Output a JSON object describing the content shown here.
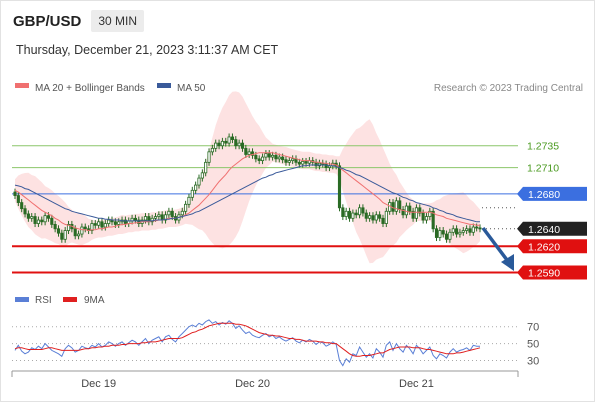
{
  "header": {
    "pair": "GBP/USD",
    "timeframe": "30 MIN"
  },
  "timestamp": "Thursday, December 21, 2023 3:11:37 AM CET",
  "legend": {
    "ma20_label": "MA 20 + Bollinger Bands",
    "ma50_label": "MA 50",
    "credit": "Research © 2023 Trading Central"
  },
  "rsi_legend": {
    "rsi_label": "RSI",
    "ma_label": "9MA"
  },
  "colors": {
    "candle": "#2a6b25",
    "ma20": "#f07070",
    "ma50": "#3a5a9a",
    "band_fill": "#fde2e2",
    "resistance": "#8cc66a",
    "pivot": "#3b6fe0",
    "support": "#e01010",
    "current": "#222222",
    "rsi": "#5a7fd6",
    "rsi_ma": "#e02020",
    "arrow": "#2a5a9a"
  },
  "chart_data": {
    "type": "candlestick",
    "x_ticks": [
      "Dec 19",
      "Dec 20",
      "Dec 21"
    ],
    "ylim": [
      1.257,
      1.2785
    ],
    "levels": [
      {
        "label": "1.2735",
        "value": 1.2735,
        "kind": "resistance"
      },
      {
        "label": "1.2710",
        "value": 1.271,
        "kind": "resistance"
      },
      {
        "label": "1.2680",
        "value": 1.268,
        "kind": "pivot"
      },
      {
        "label": "1.2640",
        "value": 1.264,
        "kind": "current"
      },
      {
        "label": "1.2620",
        "value": 1.262,
        "kind": "support"
      },
      {
        "label": "1.2590",
        "value": 1.259,
        "kind": "support"
      }
    ],
    "close": [
      1.2678,
      1.267,
      1.2663,
      1.2657,
      1.2652,
      1.2654,
      1.2646,
      1.265,
      1.2648,
      1.2655,
      1.2652,
      1.2645,
      1.264,
      1.2635,
      1.2628,
      1.2638,
      1.2645,
      1.264,
      1.2632,
      1.2634,
      1.2642,
      1.264,
      1.2638,
      1.2646,
      1.2644,
      1.2648,
      1.2642,
      1.2646,
      1.265,
      1.2648,
      1.2645,
      1.2648,
      1.265,
      1.2646,
      1.2649,
      1.2652,
      1.265,
      1.2646,
      1.265,
      1.2654,
      1.2648,
      1.2652,
      1.2654,
      1.2656,
      1.265,
      1.2656,
      1.266,
      1.2654,
      1.265,
      1.2656,
      1.266,
      1.2668,
      1.2676,
      1.2684,
      1.269,
      1.2698,
      1.2704,
      1.2716,
      1.2728,
      1.2732,
      1.2738,
      1.2735,
      1.274,
      1.2738,
      1.2745,
      1.2742,
      1.2735,
      1.2738,
      1.2732,
      1.2725,
      1.2728,
      1.2724,
      1.272,
      1.2718,
      1.2722,
      1.2726,
      1.2722,
      1.2724,
      1.272,
      1.2722,
      1.2719,
      1.2716,
      1.2718,
      1.272,
      1.2716,
      1.2714,
      1.2717,
      1.2715,
      1.2718,
      1.2716,
      1.2712,
      1.2715,
      1.2714,
      1.271,
      1.2712,
      1.2715,
      1.2712,
      1.2664,
      1.2654,
      1.266,
      1.2652,
      1.2658,
      1.2656,
      1.2664,
      1.2658,
      1.2652,
      1.2655,
      1.265,
      1.2656,
      1.2652,
      1.2646,
      1.266,
      1.267,
      1.266,
      1.2672,
      1.2662,
      1.2656,
      1.2666,
      1.266,
      1.2652,
      1.2664,
      1.2658,
      1.265,
      1.2654,
      1.266,
      1.264,
      1.263,
      1.2638,
      1.2634,
      1.2628,
      1.2636,
      1.264,
      1.2634,
      1.2636,
      1.2638,
      1.264,
      1.2636,
      1.2642,
      1.2641,
      1.264
    ],
    "ma20": [
      1.2684,
      1.2682,
      1.2679,
      1.2676,
      1.2673,
      1.267,
      1.2667,
      1.2664,
      1.2661,
      1.2659,
      1.2657,
      1.2655,
      1.2652,
      1.265,
      1.2647,
      1.2645,
      1.2644,
      1.2643,
      1.2641,
      1.264,
      1.2639,
      1.2639,
      1.2638,
      1.2639,
      1.2639,
      1.264,
      1.264,
      1.2641,
      1.2642,
      1.2642,
      1.2643,
      1.2644,
      1.2645,
      1.2645,
      1.2646,
      1.2646,
      1.2647,
      1.2647,
      1.2648,
      1.2648,
      1.2648,
      1.2649,
      1.2649,
      1.265,
      1.265,
      1.2651,
      1.2652,
      1.2652,
      1.2652,
      1.2653,
      1.2654,
      1.2656,
      1.2658,
      1.2661,
      1.2664,
      1.2667,
      1.2671,
      1.2675,
      1.2679,
      1.2684,
      1.2689,
      1.2694,
      1.2698,
      1.2702,
      1.2707,
      1.2711,
      1.2714,
      1.2717,
      1.272,
      1.2722,
      1.2724,
      1.2725,
      1.2726,
      1.2727,
      1.2727,
      1.2727,
      1.2727,
      1.2727,
      1.2726,
      1.2725,
      1.2724,
      1.2723,
      1.2722,
      1.2721,
      1.272,
      1.2719,
      1.2718,
      1.2718,
      1.2718,
      1.2717,
      1.2716,
      1.2716,
      1.2715,
      1.2715,
      1.2714,
      1.2714,
      1.2713,
      1.271,
      1.2707,
      1.2704,
      1.2701,
      1.2698,
      1.2695,
      1.2692,
      1.2689,
      1.2686,
      1.2683,
      1.268,
      1.2677,
      1.2674,
      1.267,
      1.2668,
      1.2666,
      1.2664,
      1.2663,
      1.2662,
      1.2661,
      1.266,
      1.2659,
      1.2659,
      1.2659,
      1.2659,
      1.2659,
      1.2659,
      1.2659,
      1.2658,
      1.2656,
      1.2655,
      1.2654,
      1.2652,
      1.2651,
      1.265,
      1.2649,
      1.2648,
      1.2647,
      1.2646,
      1.2645,
      1.2645,
      1.2644,
      1.2644
    ],
    "ma50": [
      1.269,
      1.2689,
      1.2688,
      1.2686,
      1.2685,
      1.2683,
      1.2681,
      1.2679,
      1.2677,
      1.2675,
      1.2673,
      1.2671,
      1.2669,
      1.2667,
      1.2665,
      1.2663,
      1.2662,
      1.266,
      1.2659,
      1.2658,
      1.2657,
      1.2656,
      1.2655,
      1.2654,
      1.2653,
      1.2652,
      1.2652,
      1.2651,
      1.2651,
      1.265,
      1.265,
      1.265,
      1.2649,
      1.2649,
      1.2649,
      1.2649,
      1.2649,
      1.2649,
      1.2649,
      1.2649,
      1.2649,
      1.2649,
      1.265,
      1.265,
      1.265,
      1.2651,
      1.2651,
      1.2652,
      1.2652,
      1.2653,
      1.2654,
      1.2655,
      1.2656,
      1.2657,
      1.2659,
      1.266,
      1.2662,
      1.2664,
      1.2666,
      1.2668,
      1.267,
      1.2672,
      1.2674,
      1.2676,
      1.2678,
      1.268,
      1.2682,
      1.2684,
      1.2686,
      1.2688,
      1.269,
      1.2692,
      1.2694,
      1.2696,
      1.2698,
      1.2699,
      1.2701,
      1.2702,
      1.2704,
      1.2705,
      1.2706,
      1.2707,
      1.2708,
      1.2709,
      1.271,
      1.2711,
      1.2712,
      1.2712,
      1.2713,
      1.2713,
      1.2713,
      1.2713,
      1.2713,
      1.2713,
      1.2712,
      1.2712,
      1.2711,
      1.271,
      1.2709,
      1.2707,
      1.2706,
      1.2704,
      1.2702,
      1.2701,
      1.2699,
      1.2697,
      1.2695,
      1.2693,
      1.2691,
      1.2689,
      1.2687,
      1.2685,
      1.2683,
      1.2681,
      1.268,
      1.2678,
      1.2676,
      1.2675,
      1.2673,
      1.2672,
      1.267,
      1.2669,
      1.2668,
      1.2667,
      1.2666,
      1.2664,
      1.2663,
      1.2661,
      1.266,
      1.2658,
      1.2657,
      1.2656,
      1.2654,
      1.2653,
      1.2652,
      1.2651,
      1.265,
      1.2649,
      1.2648,
      1.2648
    ],
    "rsi": {
      "yticks": [
        70,
        50,
        30
      ],
      "ylim": [
        20,
        85
      ],
      "values": [
        42,
        48,
        41,
        38,
        40,
        45,
        43,
        47,
        44,
        50,
        46,
        42,
        40,
        38,
        35,
        44,
        48,
        45,
        40,
        42,
        47,
        45,
        44,
        48,
        46,
        50,
        46,
        48,
        52,
        50,
        47,
        50,
        52,
        48,
        51,
        54,
        52,
        48,
        52,
        56,
        50,
        54,
        56,
        58,
        52,
        58,
        60,
        55,
        52,
        58,
        62,
        66,
        70,
        72,
        70,
        74,
        72,
        76,
        78,
        74,
        76,
        72,
        75,
        73,
        77,
        74,
        68,
        71,
        66,
        62,
        64,
        60,
        58,
        57,
        60,
        62,
        58,
        60,
        56,
        58,
        55,
        53,
        55,
        57,
        53,
        51,
        54,
        52,
        55,
        53,
        49,
        52,
        51,
        47,
        49,
        52,
        49,
        30,
        24,
        32,
        28,
        38,
        36,
        46,
        40,
        34,
        38,
        33,
        44,
        40,
        34,
        48,
        52,
        42,
        50,
        44,
        40,
        48,
        44,
        38,
        48,
        44,
        38,
        42,
        46,
        36,
        32,
        38,
        36,
        33,
        40,
        44,
        40,
        42,
        43,
        45,
        42,
        48,
        47,
        47
      ],
      "ma9": [
        44,
        45,
        45,
        44,
        43,
        43,
        43,
        43,
        43,
        44,
        45,
        45,
        44,
        43,
        42,
        42,
        42,
        42,
        42,
        42,
        43,
        44,
        44,
        45,
        45,
        46,
        46,
        47,
        47,
        48,
        48,
        48,
        49,
        49,
        50,
        50,
        50,
        50,
        51,
        51,
        52,
        52,
        52,
        53,
        54,
        55,
        56,
        56,
        56,
        56,
        57,
        59,
        61,
        63,
        64,
        66,
        67,
        69,
        71,
        72,
        73,
        74,
        74,
        74,
        74,
        74,
        73,
        73,
        72,
        71,
        69,
        67,
        65,
        63,
        62,
        61,
        60,
        60,
        59,
        59,
        58,
        57,
        56,
        56,
        55,
        55,
        54,
        53,
        53,
        53,
        53,
        52,
        52,
        51,
        51,
        50,
        50,
        47,
        44,
        41,
        38,
        36,
        35,
        35,
        36,
        36,
        36,
        37,
        38,
        39,
        39,
        41,
        43,
        44,
        45,
        46,
        46,
        46,
        46,
        45,
        45,
        45,
        44,
        43,
        43,
        42,
        41,
        40,
        39,
        38,
        38,
        38,
        39,
        39,
        40,
        41,
        42,
        43,
        44,
        45
      ]
    }
  }
}
